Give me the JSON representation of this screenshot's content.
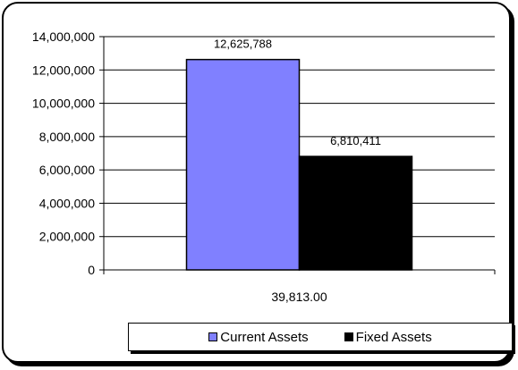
{
  "chart_data": {
    "type": "bar",
    "categories": [
      "39,813.00"
    ],
    "series": [
      {
        "name": "Current Assets",
        "values": [
          12625788
        ],
        "label": "12,625,788",
        "color": "#8080ff"
      },
      {
        "name": "Fixed Assets",
        "values": [
          6810411
        ],
        "label": "6,810,411",
        "color": "#000000"
      }
    ],
    "yticks": [
      "0",
      "2,000,000",
      "4,000,000",
      "6,000,000",
      "8,000,000",
      "10,000,000",
      "12,000,000",
      "14,000,000"
    ],
    "ylim": [
      0,
      14000000
    ],
    "grid": true,
    "legend_position": "bottom"
  }
}
